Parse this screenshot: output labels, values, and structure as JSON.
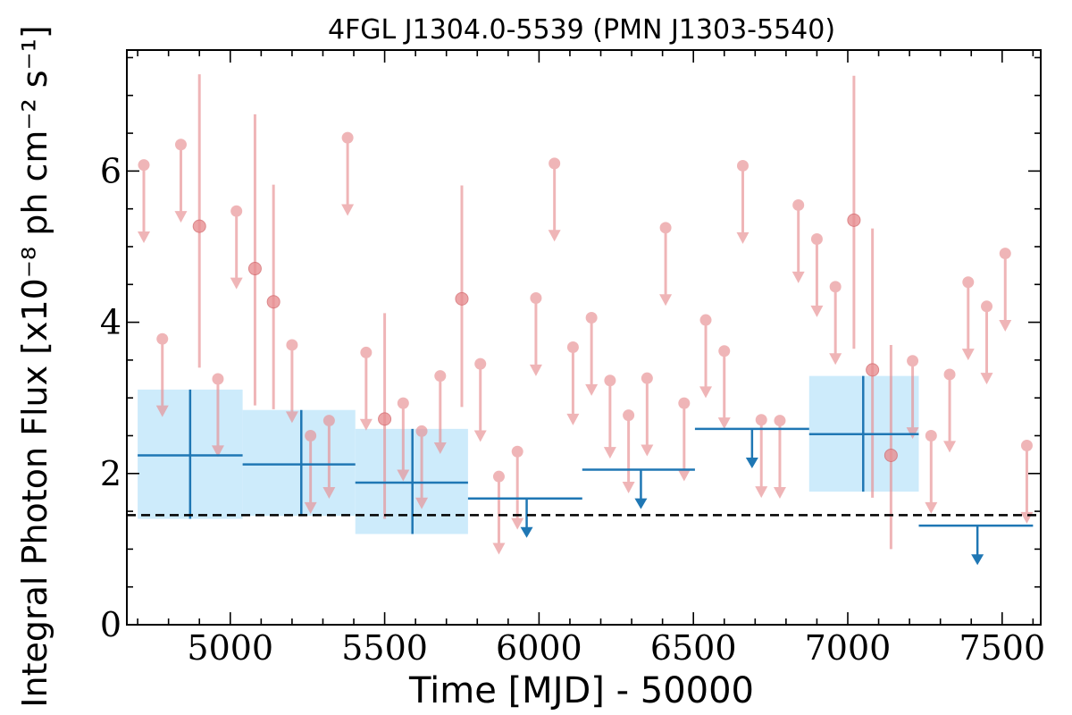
{
  "chart_data": {
    "type": "scatter",
    "title": "4FGL J1304.0-5539 (PMN J1303-5540)",
    "xlabel": "Time [MJD] - 50000",
    "ylabel": "Integral Photon Flux [x10⁻⁸ ph cm⁻² s⁻¹]",
    "xlim": [
      4665,
      7625
    ],
    "ylim": [
      0,
      7.6
    ],
    "xticks": [
      5000,
      5500,
      6000,
      6500,
      7000,
      7500
    ],
    "yticks": [
      0,
      2,
      4,
      6
    ],
    "grid": false,
    "reference_line_y": 1.45,
    "colors": {
      "fine_points": "#e88f92",
      "coarse_line": "#1f77b4",
      "coarse_fill": "#cdebfb",
      "reference": "#000000"
    },
    "fine_upper_limits": [
      {
        "x": 4720,
        "y": 6.08
      },
      {
        "x": 4780,
        "y": 3.78
      },
      {
        "x": 4840,
        "y": 6.35
      },
      {
        "x": 4960,
        "y": 3.25
      },
      {
        "x": 5020,
        "y": 5.47
      },
      {
        "x": 5200,
        "y": 3.7
      },
      {
        "x": 5260,
        "y": 2.5
      },
      {
        "x": 5320,
        "y": 2.7
      },
      {
        "x": 5380,
        "y": 6.44
      },
      {
        "x": 5440,
        "y": 3.6
      },
      {
        "x": 5560,
        "y": 2.93
      },
      {
        "x": 5620,
        "y": 2.56
      },
      {
        "x": 5680,
        "y": 3.29
      },
      {
        "x": 5810,
        "y": 3.45
      },
      {
        "x": 5870,
        "y": 1.96
      },
      {
        "x": 5930,
        "y": 2.29
      },
      {
        "x": 5990,
        "y": 4.32
      },
      {
        "x": 6050,
        "y": 6.1
      },
      {
        "x": 6110,
        "y": 3.67
      },
      {
        "x": 6170,
        "y": 4.06
      },
      {
        "x": 6230,
        "y": 3.23
      },
      {
        "x": 6290,
        "y": 2.77
      },
      {
        "x": 6350,
        "y": 3.26
      },
      {
        "x": 6410,
        "y": 5.25
      },
      {
        "x": 6470,
        "y": 2.93
      },
      {
        "x": 6540,
        "y": 4.03
      },
      {
        "x": 6600,
        "y": 3.62
      },
      {
        "x": 6660,
        "y": 6.07
      },
      {
        "x": 6720,
        "y": 2.71
      },
      {
        "x": 6780,
        "y": 2.7
      },
      {
        "x": 6840,
        "y": 5.55
      },
      {
        "x": 6900,
        "y": 5.1
      },
      {
        "x": 6960,
        "y": 4.47
      },
      {
        "x": 7210,
        "y": 3.49
      },
      {
        "x": 7270,
        "y": 2.5
      },
      {
        "x": 7330,
        "y": 3.31
      },
      {
        "x": 7390,
        "y": 4.53
      },
      {
        "x": 7450,
        "y": 4.21
      },
      {
        "x": 7510,
        "y": 4.91
      },
      {
        "x": 7580,
        "y": 2.37
      }
    ],
    "fine_detections": [
      {
        "x": 4900,
        "y": 5.27,
        "ylow": 3.4,
        "yhigh": 7.28
      },
      {
        "x": 5080,
        "y": 4.71,
        "ylow": 2.9,
        "yhigh": 6.75
      },
      {
        "x": 5140,
        "y": 4.27,
        "ylow": 2.85,
        "yhigh": 5.82
      },
      {
        "x": 5500,
        "y": 2.72,
        "ylow": 1.4,
        "yhigh": 4.12
      },
      {
        "x": 5750,
        "y": 4.31,
        "ylow": 2.88,
        "yhigh": 5.81
      },
      {
        "x": 7020,
        "y": 5.35,
        "ylow": 3.65,
        "yhigh": 7.26
      },
      {
        "x": 7080,
        "y": 3.37,
        "ylow": 1.68,
        "yhigh": 5.24
      },
      {
        "x": 7140,
        "y": 2.24,
        "ylow": 1.0,
        "yhigh": 3.7
      }
    ],
    "coarse_detections": [
      {
        "x": 4870,
        "xlow": 4700,
        "xhigh": 5040,
        "y": 2.24,
        "ylow": 1.4,
        "yhigh": 3.11
      },
      {
        "x": 5230,
        "xlow": 5040,
        "xhigh": 5405,
        "y": 2.12,
        "ylow": 1.44,
        "yhigh": 2.84
      },
      {
        "x": 5590,
        "xlow": 5405,
        "xhigh": 5770,
        "y": 1.88,
        "ylow": 1.2,
        "yhigh": 2.59
      },
      {
        "x": 7050,
        "xlow": 6875,
        "xhigh": 7230,
        "y": 2.52,
        "ylow": 1.76,
        "yhigh": 3.29
      }
    ],
    "coarse_upper_limits": [
      {
        "x": 5960,
        "xlow": 5770,
        "xhigh": 6140,
        "y": 1.67
      },
      {
        "x": 6330,
        "xlow": 6140,
        "xhigh": 6505,
        "y": 2.05
      },
      {
        "x": 6690,
        "xlow": 6505,
        "xhigh": 6875,
        "y": 2.59
      },
      {
        "x": 7420,
        "xlow": 7230,
        "xhigh": 7600,
        "y": 1.31
      }
    ]
  }
}
